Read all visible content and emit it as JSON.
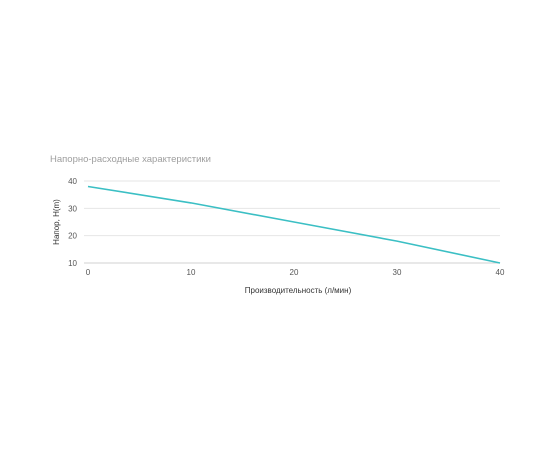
{
  "chart_data": {
    "type": "line",
    "title": "Напорно-расходные характеристики",
    "xlabel": "Производительность (л/мин)",
    "ylabel": "Напор, H(m)",
    "xlim": [
      0,
      40
    ],
    "ylim": [
      10,
      40
    ],
    "x_ticks": [
      "0",
      "10",
      "20",
      "30",
      "40"
    ],
    "y_ticks": [
      "40",
      "30",
      "20",
      "10"
    ],
    "grid": true,
    "legend": "none",
    "series": [
      {
        "color": "#3bbfc4",
        "x": [
          0,
          10,
          20,
          30,
          40
        ],
        "y": [
          38,
          32,
          25,
          18,
          10
        ]
      }
    ]
  }
}
